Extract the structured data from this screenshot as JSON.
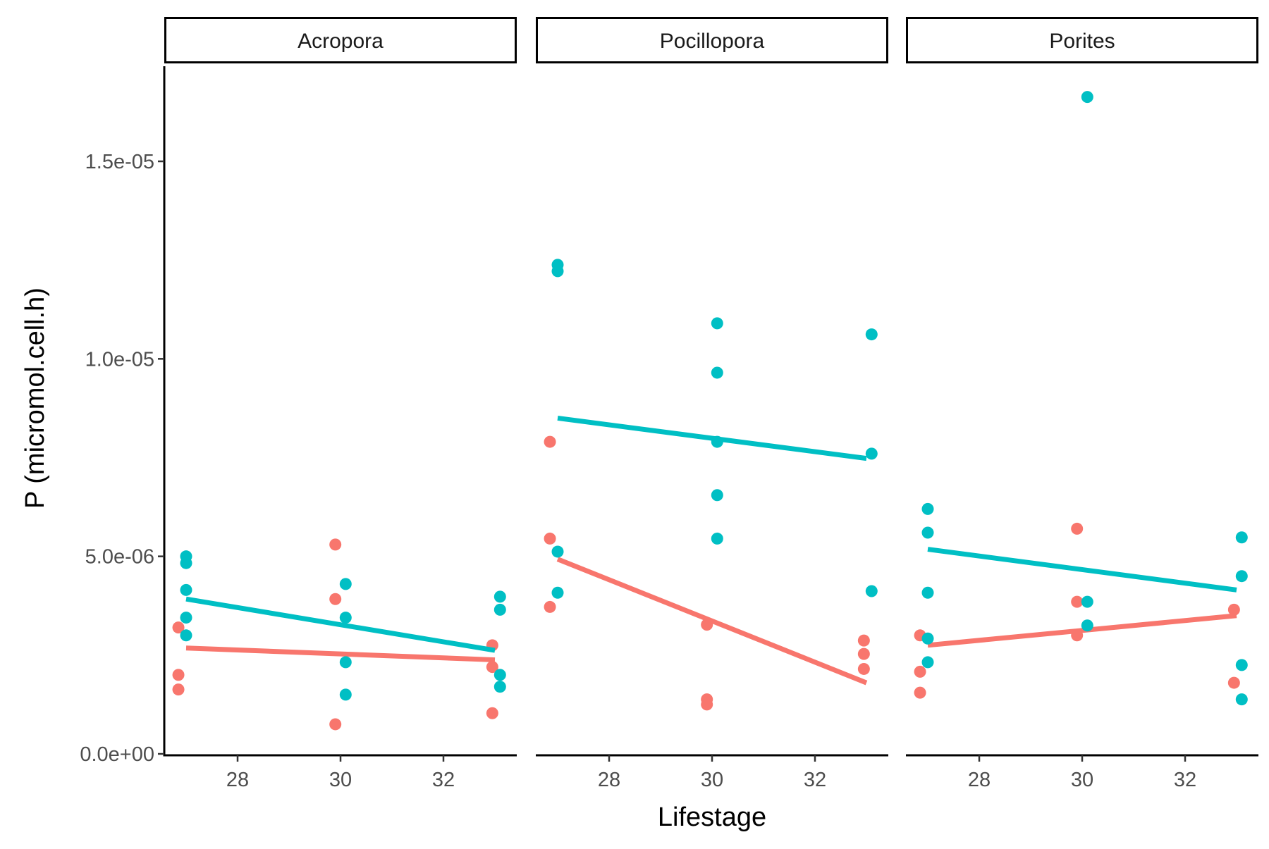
{
  "chart_data": {
    "type": "scatter",
    "xlabel": "Lifestage",
    "ylabel": "P (micromol.cell.h)",
    "x_ticks": [
      28,
      30,
      32
    ],
    "y_ticks": [
      "0.0e+00",
      "5.0e-06",
      "1.0e-05",
      "1.5e-05"
    ],
    "y_tick_values": [
      0,
      5e-06,
      1e-05,
      1.5e-05
    ],
    "xlim": [
      26.6,
      33.5
    ],
    "ylim": [
      0,
      1.75e-05
    ],
    "grid": false,
    "legend": "none",
    "colors": {
      "red": "#F8766D",
      "teal": "#00BFC4"
    },
    "panels": [
      {
        "name": "Acropora",
        "series": [
          {
            "color": "#F8766D",
            "points": [
              [
                26.85,
                3.2e-06
              ],
              [
                26.85,
                2e-06
              ],
              [
                26.85,
                1.63e-06
              ],
              [
                29.9,
                5.3e-06
              ],
              [
                29.9,
                3.92e-06
              ],
              [
                29.9,
                7.5e-07
              ],
              [
                32.95,
                2.75e-06
              ],
              [
                32.95,
                2.2e-06
              ],
              [
                32.95,
                1.03e-06
              ]
            ],
            "fit": [
              [
                27,
                2.68e-06
              ],
              [
                33,
                2.38e-06
              ]
            ]
          },
          {
            "color": "#00BFC4",
            "points": [
              [
                27.0,
                5e-06
              ],
              [
                27.0,
                4.83e-06
              ],
              [
                27.0,
                4.15e-06
              ],
              [
                27.0,
                3.45e-06
              ],
              [
                27.0,
                3e-06
              ],
              [
                30.1,
                4.3e-06
              ],
              [
                30.1,
                3.45e-06
              ],
              [
                30.1,
                2.32e-06
              ],
              [
                30.1,
                1.5e-06
              ],
              [
                33.1,
                3.98e-06
              ],
              [
                33.1,
                3.65e-06
              ],
              [
                33.1,
                2e-06
              ],
              [
                33.1,
                1.7e-06
              ]
            ],
            "fit": [
              [
                27,
                3.92e-06
              ],
              [
                33,
                2.62e-06
              ]
            ]
          }
        ]
      },
      {
        "name": "Pocillopora",
        "series": [
          {
            "color": "#F8766D",
            "points": [
              [
                26.85,
                7.9e-06
              ],
              [
                26.85,
                5.45e-06
              ],
              [
                26.85,
                3.72e-06
              ],
              [
                29.9,
                3.27e-06
              ],
              [
                29.9,
                1.38e-06
              ],
              [
                29.9,
                1.25e-06
              ],
              [
                32.95,
                2.87e-06
              ],
              [
                32.95,
                2.53e-06
              ],
              [
                32.95,
                2.15e-06
              ]
            ],
            "fit": [
              [
                27,
                4.93e-06
              ],
              [
                33,
                1.8e-06
              ]
            ]
          },
          {
            "color": "#00BFC4",
            "points": [
              [
                27.0,
                1.238e-05
              ],
              [
                27.0,
                1.222e-05
              ],
              [
                27.0,
                5.12e-06
              ],
              [
                27.0,
                4.08e-06
              ],
              [
                30.1,
                1.09e-05
              ],
              [
                30.1,
                9.65e-06
              ],
              [
                30.1,
                7.9e-06
              ],
              [
                30.1,
                6.55e-06
              ],
              [
                30.1,
                5.45e-06
              ],
              [
                33.1,
                1.062e-05
              ],
              [
                33.1,
                7.6e-06
              ],
              [
                33.1,
                4.12e-06
              ]
            ],
            "fit": [
              [
                27,
                8.5e-06
              ],
              [
                33,
                7.48e-06
              ]
            ]
          }
        ]
      },
      {
        "name": "Porites",
        "series": [
          {
            "color": "#F8766D",
            "points": [
              [
                26.85,
                3e-06
              ],
              [
                26.85,
                2.08e-06
              ],
              [
                26.85,
                1.55e-06
              ],
              [
                29.9,
                5.7e-06
              ],
              [
                29.9,
                3.85e-06
              ],
              [
                29.9,
                3e-06
              ],
              [
                32.95,
                3.65e-06
              ],
              [
                32.95,
                1.8e-06
              ]
            ],
            "fit": [
              [
                27,
                2.75e-06
              ],
              [
                33,
                3.5e-06
              ]
            ]
          },
          {
            "color": "#00BFC4",
            "points": [
              [
                27.0,
                6.2e-06
              ],
              [
                27.0,
                5.6e-06
              ],
              [
                27.0,
                4.08e-06
              ],
              [
                27.0,
                2.92e-06
              ],
              [
                27.0,
                2.32e-06
              ],
              [
                30.1,
                1.663e-05
              ],
              [
                30.1,
                3.85e-06
              ],
              [
                30.1,
                3.25e-06
              ],
              [
                33.1,
                5.48e-06
              ],
              [
                33.1,
                4.5e-06
              ],
              [
                33.1,
                2.25e-06
              ],
              [
                33.1,
                1.38e-06
              ]
            ],
            "fit": [
              [
                27,
                5.18e-06
              ],
              [
                33,
                4.15e-06
              ]
            ]
          }
        ]
      }
    ]
  }
}
